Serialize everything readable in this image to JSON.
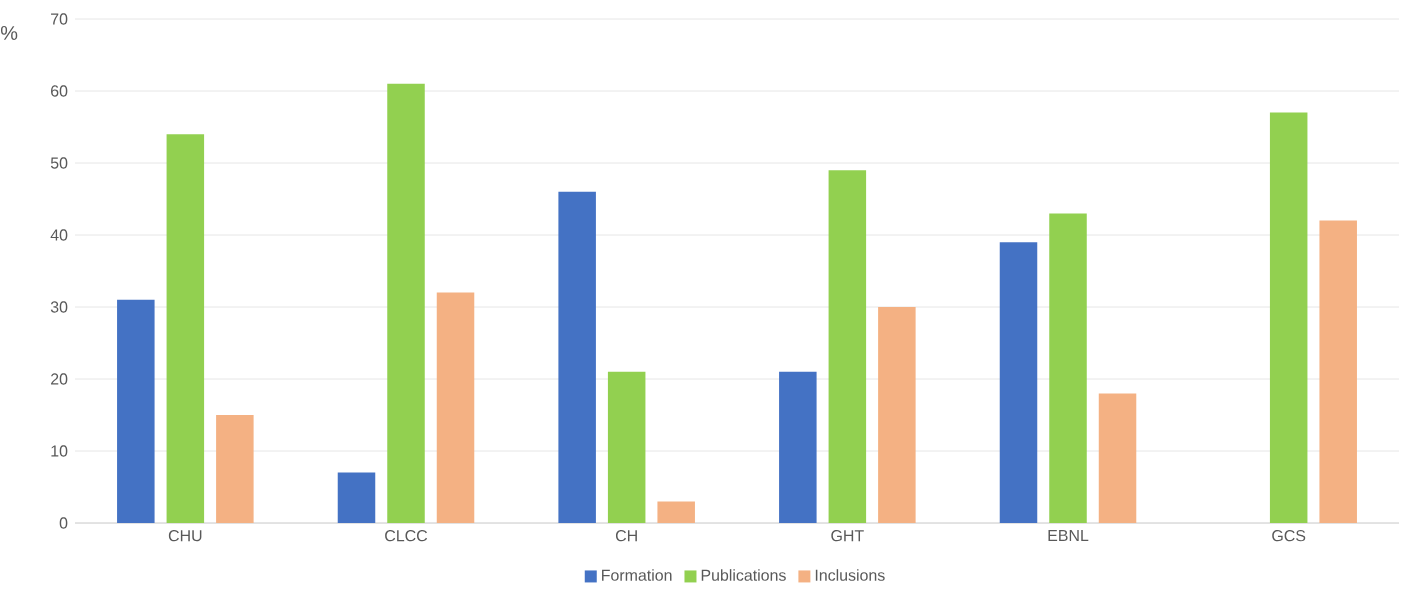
{
  "chart_data": {
    "type": "bar",
    "ylabel": "%",
    "categories": [
      "CHU",
      "CLCC",
      "CH",
      "GHT",
      "EBNL",
      "GCS"
    ],
    "series": [
      {
        "name": "Formation",
        "color": "#4472c4",
        "values": [
          31,
          7,
          46,
          21,
          39,
          0
        ]
      },
      {
        "name": "Publications",
        "color": "#92d050",
        "values": [
          54,
          61,
          21,
          49,
          43,
          57
        ]
      },
      {
        "name": "Inclusions",
        "color": "#f4b183",
        "values": [
          15,
          32,
          3,
          30,
          18,
          42
        ]
      }
    ],
    "ylim": [
      0,
      70
    ],
    "yticks": [
      0,
      10,
      20,
      30,
      40,
      50,
      60,
      70
    ],
    "grid": "y",
    "legend": "bottom"
  }
}
